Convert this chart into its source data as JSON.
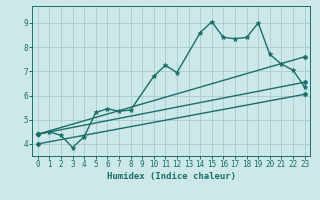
{
  "title": "",
  "xlabel": "Humidex (Indice chaleur)",
  "ylabel": "",
  "background_color": "#cce8e8",
  "grid_color": "#aacccc",
  "line_color": "#1a6e6a",
  "xlim": [
    -0.5,
    23.5
  ],
  "ylim": [
    3.5,
    9.7
  ],
  "xticks": [
    0,
    1,
    2,
    3,
    4,
    5,
    6,
    7,
    8,
    9,
    10,
    11,
    12,
    13,
    14,
    15,
    16,
    17,
    18,
    19,
    20,
    21,
    22,
    23
  ],
  "yticks": [
    4,
    5,
    6,
    7,
    8,
    9
  ],
  "series": [
    {
      "x": [
        0,
        1,
        2,
        3,
        4,
        5,
        6,
        7,
        8,
        10,
        11,
        12,
        14,
        15,
        16,
        17,
        18,
        19,
        20,
        21,
        22,
        23
      ],
      "y": [
        4.4,
        4.5,
        4.35,
        3.85,
        4.3,
        5.3,
        5.45,
        5.35,
        5.4,
        6.8,
        7.25,
        6.95,
        8.6,
        9.05,
        8.4,
        8.35,
        8.4,
        9.0,
        7.7,
        7.3,
        7.05,
        6.35
      ],
      "marker": "*",
      "markersize": 3.5,
      "linewidth": 1.0
    },
    {
      "x": [
        0,
        23
      ],
      "y": [
        4.4,
        7.6
      ],
      "marker": "D",
      "markersize": 2.5,
      "linewidth": 1.0
    },
    {
      "x": [
        0,
        23
      ],
      "y": [
        4.4,
        6.55
      ],
      "marker": "D",
      "markersize": 2.5,
      "linewidth": 1.0
    },
    {
      "x": [
        0,
        23
      ],
      "y": [
        4.0,
        6.05
      ],
      "marker": "D",
      "markersize": 2.5,
      "linewidth": 1.0
    }
  ]
}
